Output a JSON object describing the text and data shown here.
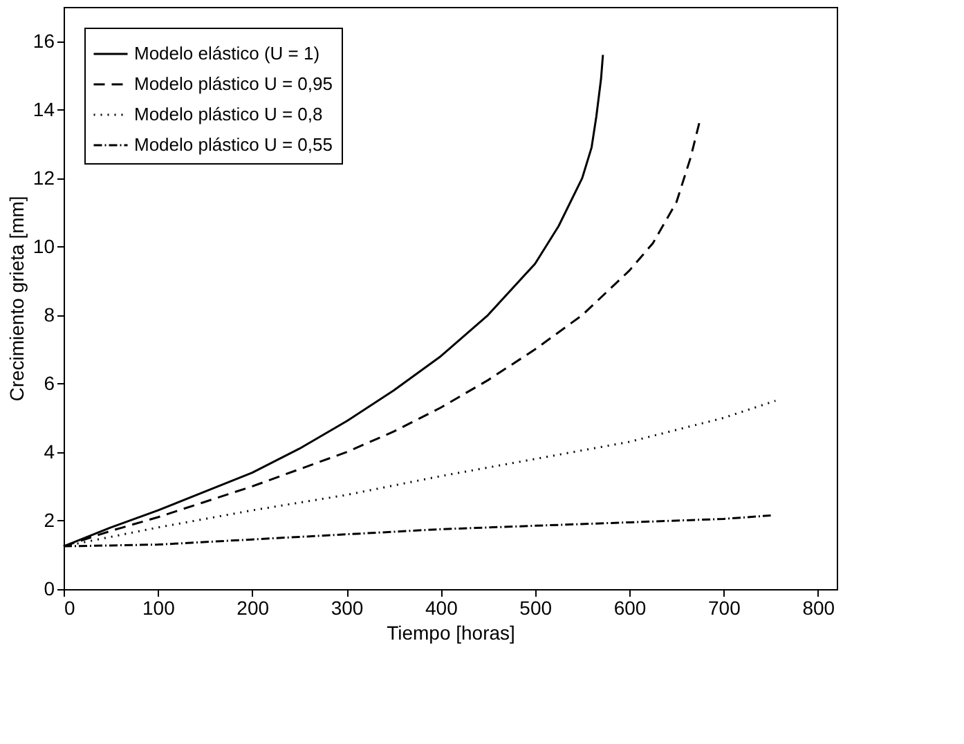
{
  "chart_data": {
    "type": "line",
    "xlabel": "Tiempo [horas]",
    "ylabel": "Crecimiento grieta [mm]",
    "xlim": [
      0,
      820
    ],
    "xticks": [
      0,
      100,
      200,
      300,
      400,
      500,
      600,
      700,
      800
    ],
    "ylim": [
      0,
      17
    ],
    "yticks": [
      0,
      2,
      4,
      6,
      8,
      10,
      12,
      14,
      16
    ],
    "grid": false,
    "legend": "top left",
    "marker": "none",
    "series": [
      {
        "name": "Modelo elástico (U = 1)",
        "color": "#000000",
        "line_style": "solid",
        "x": [
          0,
          50,
          100,
          150,
          200,
          250,
          300,
          350,
          400,
          450,
          500,
          525,
          550,
          560,
          565,
          570,
          572
        ],
        "values": [
          1.25,
          1.8,
          2.3,
          2.85,
          3.4,
          4.1,
          4.9,
          5.8,
          6.8,
          8.0,
          9.5,
          10.6,
          12.0,
          12.9,
          13.8,
          14.9,
          15.6
        ]
      },
      {
        "name": "Modelo plástico U = 0,95",
        "color": "#000000",
        "line_style": "dashed",
        "x": [
          0,
          50,
          100,
          150,
          200,
          250,
          300,
          350,
          400,
          450,
          500,
          550,
          600,
          625,
          650,
          665,
          675
        ],
        "values": [
          1.25,
          1.7,
          2.1,
          2.55,
          3.0,
          3.5,
          4.0,
          4.6,
          5.3,
          6.1,
          7.0,
          8.0,
          9.3,
          10.1,
          11.3,
          12.6,
          13.7
        ]
      },
      {
        "name": "Modelo plástico U = 0,8",
        "color": "#000000",
        "line_style": "dotted",
        "x": [
          0,
          100,
          200,
          300,
          400,
          500,
          600,
          700,
          755
        ],
        "values": [
          1.25,
          1.8,
          2.3,
          2.75,
          3.3,
          3.8,
          4.3,
          5.0,
          5.5
        ]
      },
      {
        "name": "Modelo plástico U = 0,55",
        "color": "#000000",
        "line_style": "dashdot",
        "x": [
          0,
          100,
          200,
          300,
          400,
          500,
          600,
          700,
          750
        ],
        "values": [
          1.25,
          1.3,
          1.45,
          1.6,
          1.75,
          1.85,
          1.95,
          2.05,
          2.15
        ]
      }
    ]
  }
}
